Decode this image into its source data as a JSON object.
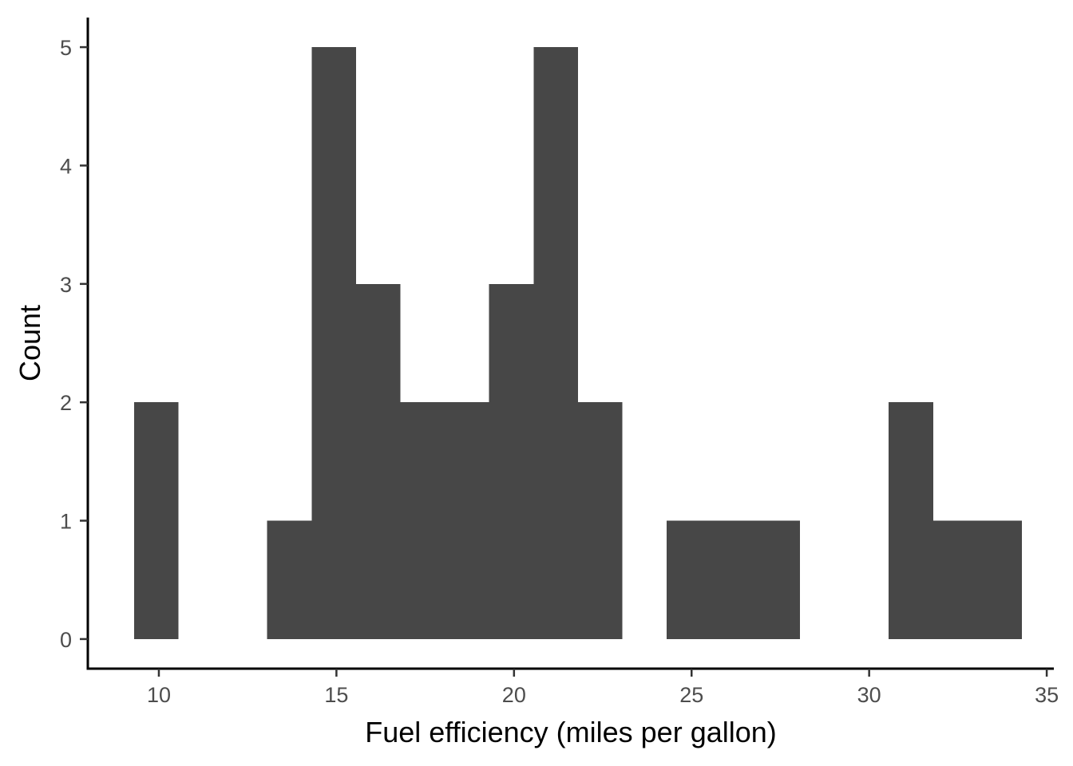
{
  "chart_data": {
    "type": "bar",
    "subtype": "histogram",
    "title": "",
    "xlabel": "Fuel efficiency (miles per gallon)",
    "ylabel": "Count",
    "xlim": [
      8.0,
      35.2
    ],
    "ylim": [
      -0.25,
      5.25
    ],
    "xticks": [
      10,
      15,
      20,
      25,
      30,
      35
    ],
    "yticks": [
      0,
      1,
      2,
      3,
      4,
      5
    ],
    "grid": false,
    "bar_color": "#474747",
    "bins": [
      {
        "start": 9.3,
        "end": 10.55,
        "count": 2
      },
      {
        "start": 10.55,
        "end": 11.8,
        "count": 0
      },
      {
        "start": 11.8,
        "end": 13.05,
        "count": 0
      },
      {
        "start": 13.05,
        "end": 14.3,
        "count": 1
      },
      {
        "start": 14.3,
        "end": 15.55,
        "count": 5
      },
      {
        "start": 15.55,
        "end": 16.8,
        "count": 3
      },
      {
        "start": 16.8,
        "end": 18.05,
        "count": 2
      },
      {
        "start": 18.05,
        "end": 19.3,
        "count": 2
      },
      {
        "start": 19.3,
        "end": 20.55,
        "count": 3
      },
      {
        "start": 20.55,
        "end": 21.8,
        "count": 5
      },
      {
        "start": 21.8,
        "end": 23.05,
        "count": 2
      },
      {
        "start": 23.05,
        "end": 24.3,
        "count": 0
      },
      {
        "start": 24.3,
        "end": 25.55,
        "count": 1
      },
      {
        "start": 25.55,
        "end": 26.8,
        "count": 1
      },
      {
        "start": 26.8,
        "end": 28.05,
        "count": 1
      },
      {
        "start": 28.05,
        "end": 29.3,
        "count": 0
      },
      {
        "start": 29.3,
        "end": 30.55,
        "count": 0
      },
      {
        "start": 30.55,
        "end": 31.8,
        "count": 2
      },
      {
        "start": 31.8,
        "end": 33.05,
        "count": 1
      },
      {
        "start": 33.05,
        "end": 34.3,
        "count": 1
      }
    ]
  }
}
